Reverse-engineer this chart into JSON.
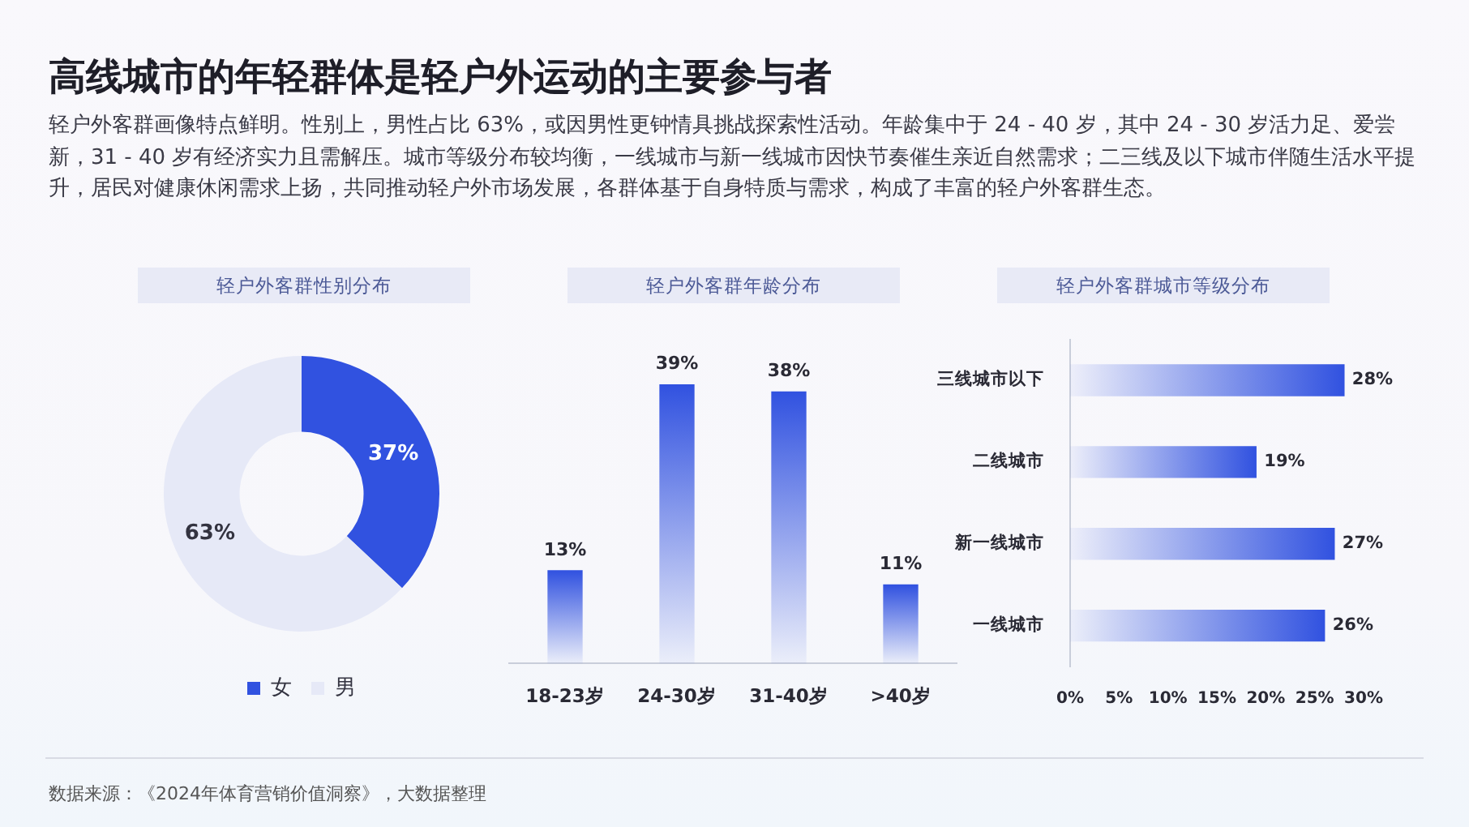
{
  "chart_data": [
    {
      "type": "other",
      "title": "高线城市的年轻群体是轻户外运动的主要参与者",
      "subtitle": "轻户外客群画像特点鲜明。性别上，男性占比 63%，或因男性更钟情具挑战探索性活动。年龄集中于 24 - 40 岁，其中 24 - 30 岁活力足、爱尝新，31 - 40 岁有经济实力且需解压。城市等级分布较均衡，一线城市与新一线城市因快节奏催生亲近自然需求；二三线及以下城市伴随生活水平提升，居民对健康休闲需求上扬，共同推动轻户外市场发展，各群体基于自身特质与需求，构成了丰富的轻户外客群生态。",
      "annotations": [
        "数据来源：《2024年体育营销价值洞察》，大数据整理"
      ]
    },
    {
      "type": "donut",
      "title": "轻户外客群性别分布",
      "categories": [
        "女",
        "男"
      ],
      "values": [
        37,
        63
      ],
      "colors": [
        "#3152e0",
        "#e6e9f7"
      ],
      "value_labels": [
        "37%",
        "63%"
      ],
      "legend": "bottom"
    },
    {
      "type": "bar",
      "title": "轻户外客群年龄分布",
      "categories": [
        "18-23岁",
        "24-30岁",
        "31-40岁",
        ">40岁"
      ],
      "values": [
        13,
        39,
        38,
        11
      ],
      "color": "#3152e0",
      "value_labels": [
        "13%",
        "39%",
        "38%",
        "11%"
      ]
    },
    {
      "type": "bar",
      "orientation": "horizontal",
      "title": "轻户外客群城市等级分布",
      "categories": [
        "三线城市以下",
        "二线城市",
        "新一线城市",
        "一线城市"
      ],
      "values": [
        28,
        19,
        27,
        26
      ],
      "color": "#3152e0",
      "value_labels": [
        "28%",
        "19%",
        "27%",
        "26%"
      ],
      "xlim": [
        0,
        30
      ],
      "xticks": [
        {
          "value": 0,
          "label": "0%"
        },
        {
          "value": 5,
          "label": "5%"
        },
        {
          "value": 10,
          "label": "10%"
        },
        {
          "value": 15,
          "label": "15%"
        },
        {
          "value": 20,
          "label": "20%"
        },
        {
          "value": 25,
          "label": "25%"
        },
        {
          "value": 30,
          "label": "30%"
        }
      ]
    }
  ]
}
